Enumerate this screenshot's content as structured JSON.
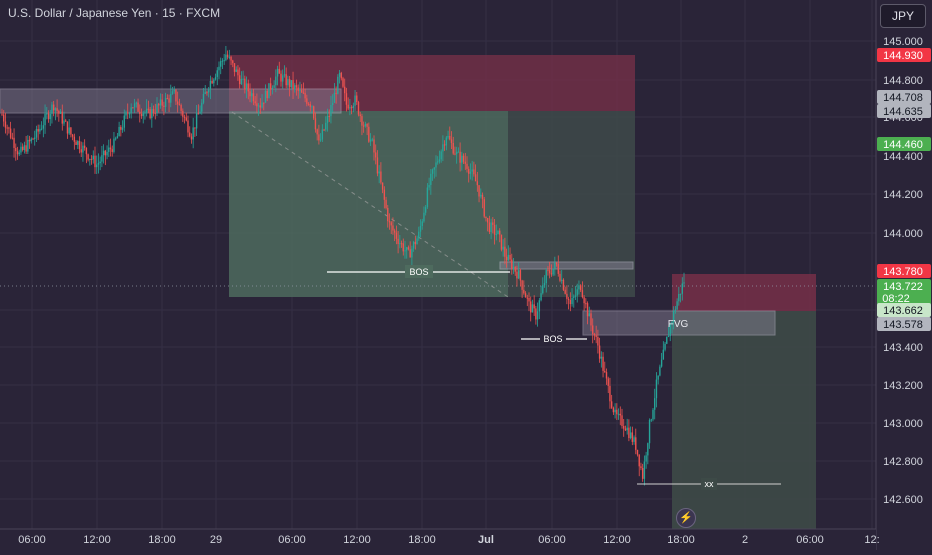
{
  "title": "U.S. Dollar / Japanese Yen · 15 · FXCM",
  "currency": "JPY",
  "colors": {
    "background": "#2a2438",
    "up": "#26a69a",
    "down": "#ef5350",
    "grid": "#352f45",
    "axis_text": "#d1d4dc",
    "profit_zone": "#4a6358",
    "loss_zone": "#7a3048"
  },
  "chart_data": {
    "type": "candlestick",
    "ylim": [
      142.5,
      145.1
    ],
    "y_ticks": [
      "145.000",
      "144.800",
      "144.600",
      "144.400",
      "144.200",
      "144.000",
      "143.600",
      "143.400",
      "143.200",
      "143.000",
      "142.800",
      "142.600"
    ],
    "x_ticks": [
      "06:00",
      "12:00",
      "18:00",
      "29",
      "06:00",
      "12:00",
      "18:00",
      "Jul",
      "06:00",
      "12:00",
      "18:00",
      "2",
      "06:00",
      "12:"
    ],
    "price_labels": [
      {
        "value": "144.930",
        "kind": "red"
      },
      {
        "value": "144.708",
        "kind": "gray"
      },
      {
        "value": "144.635",
        "kind": "gray"
      },
      {
        "value": "144.460",
        "kind": "green"
      },
      {
        "value": "143.780",
        "kind": "red"
      },
      {
        "value": "143.722",
        "kind": "green",
        "sub": "08:22"
      },
      {
        "value": "143.662",
        "kind": "lightgreen"
      },
      {
        "value": "143.578",
        "kind": "gray"
      }
    ],
    "current_price": 143.722,
    "annotations": {
      "bos_1": "BOS",
      "bos_2": "BOS",
      "fvg": "FVG",
      "target": "xx"
    },
    "path_keypoints": [
      [
        0,
        144.55
      ],
      [
        10,
        144.35
      ],
      [
        20,
        144.45
      ],
      [
        30,
        144.6
      ],
      [
        40,
        144.45
      ],
      [
        55,
        144.3
      ],
      [
        65,
        144.4
      ],
      [
        75,
        144.6
      ],
      [
        85,
        144.55
      ],
      [
        100,
        144.65
      ],
      [
        110,
        144.45
      ],
      [
        120,
        144.7
      ],
      [
        130,
        144.85
      ],
      [
        140,
        144.7
      ],
      [
        150,
        144.6
      ],
      [
        160,
        144.75
      ],
      [
        170,
        144.68
      ],
      [
        180,
        144.6
      ],
      [
        184,
        144.4
      ],
      [
        190,
        144.55
      ],
      [
        196,
        144.74
      ],
      [
        200,
        144.6
      ],
      [
        205,
        144.62
      ],
      [
        210,
        144.5
      ],
      [
        215,
        144.4
      ],
      [
        220,
        144.2
      ],
      [
        225,
        144.0
      ],
      [
        232,
        143.9
      ],
      [
        236,
        143.85
      ],
      [
        242,
        143.95
      ],
      [
        248,
        144.2
      ],
      [
        254,
        144.35
      ],
      [
        258,
        144.45
      ],
      [
        264,
        144.35
      ],
      [
        270,
        144.3
      ],
      [
        276,
        144.2
      ],
      [
        282,
        144.0
      ],
      [
        288,
        143.95
      ],
      [
        292,
        143.85
      ],
      [
        300,
        143.75
      ],
      [
        306,
        143.6
      ],
      [
        310,
        143.55
      ],
      [
        316,
        143.75
      ],
      [
        322,
        143.8
      ],
      [
        330,
        143.6
      ],
      [
        336,
        143.7
      ],
      [
        342,
        143.5
      ],
      [
        346,
        143.4
      ],
      [
        350,
        143.25
      ],
      [
        356,
        143.05
      ],
      [
        362,
        143.0
      ],
      [
        368,
        142.9
      ],
      [
        372,
        142.75
      ],
      [
        376,
        143.0
      ],
      [
        380,
        143.2
      ],
      [
        384,
        143.35
      ],
      [
        388,
        143.5
      ],
      [
        392,
        143.62
      ],
      [
        396,
        143.722
      ]
    ]
  }
}
